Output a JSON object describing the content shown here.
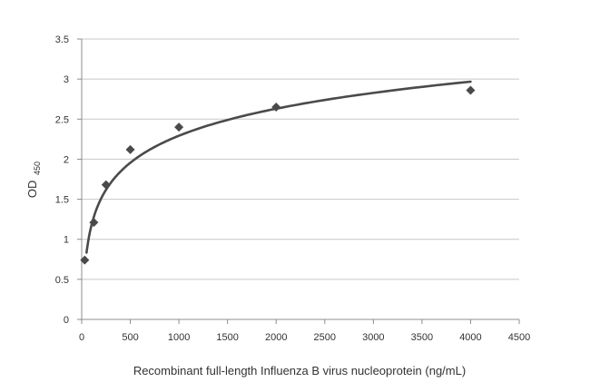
{
  "chart_data": {
    "type": "scatter",
    "xlabel": "Recombinant full-length Influenza B virus nucleoprotein  (ng/mL)",
    "ylabel": "OD",
    "ylabel_subscript": "450",
    "xlim": [
      0,
      4500
    ],
    "ylim": [
      0,
      3.5
    ],
    "x_ticks": [
      "0",
      "500",
      "1000",
      "1500",
      "2000",
      "2500",
      "3000",
      "3500",
      "4000",
      "4500"
    ],
    "y_ticks": [
      "0",
      "0.5",
      "1",
      "1.5",
      "2",
      "2.5",
      "3",
      "3.5"
    ],
    "grid": "horizontal",
    "legend": "none",
    "series": [
      {
        "marker": "diamond",
        "color": "#4a4a4a",
        "x": [
          31.25,
          125,
          250,
          500,
          1000,
          2000,
          4000
        ],
        "y": [
          0.74,
          1.21,
          1.68,
          2.12,
          2.4,
          2.65,
          2.86
        ]
      }
    ],
    "trendline": {
      "kind": "logarithmic",
      "color": "#4a4a4a",
      "x_range": [
        50,
        4000
      ],
      "sample_x": [
        50,
        100,
        200,
        500,
        1000,
        2000,
        4000
      ],
      "sample_y": [
        0.86,
        1.18,
        1.5,
        1.93,
        2.25,
        2.62,
        3.02
      ]
    }
  }
}
